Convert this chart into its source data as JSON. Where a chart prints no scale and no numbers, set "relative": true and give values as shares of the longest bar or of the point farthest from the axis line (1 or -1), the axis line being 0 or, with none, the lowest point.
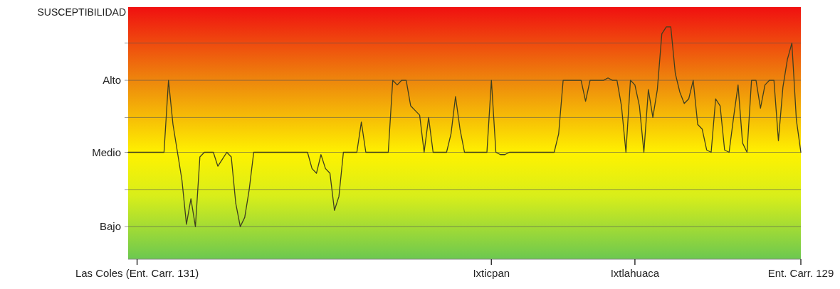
{
  "chart_data": {
    "type": "line",
    "ylabel": "SUSCEPTIBILIDAD",
    "relative": true,
    "categories": [
      null,
      null,
      "Las Coles (Ent. Carr. 131)",
      null,
      null,
      null,
      null,
      null,
      null,
      null,
      null,
      null,
      null,
      null,
      null,
      null,
      null,
      null,
      null,
      null,
      null,
      null,
      null,
      null,
      null,
      null,
      null,
      null,
      null,
      null,
      null,
      null,
      null,
      null,
      null,
      null,
      null,
      null,
      null,
      null,
      null,
      null,
      null,
      null,
      null,
      null,
      null,
      null,
      null,
      null,
      null,
      null,
      null,
      null,
      null,
      null,
      null,
      null,
      null,
      null,
      null,
      null,
      null,
      null,
      null,
      null,
      null,
      null,
      null,
      null,
      null,
      null,
      null,
      null,
      null,
      null,
      null,
      null,
      null,
      null,
      null,
      "Ixticpan",
      null,
      null,
      null,
      null,
      null,
      null,
      null,
      null,
      null,
      null,
      null,
      null,
      null,
      null,
      null,
      null,
      null,
      null,
      null,
      null,
      null,
      null,
      null,
      null,
      null,
      null,
      null,
      null,
      null,
      null,
      null,
      "Ixtlahuaca",
      null,
      null,
      null,
      null,
      null,
      null,
      null,
      null,
      null,
      null,
      null,
      null,
      null,
      null,
      null,
      null,
      null,
      null,
      null,
      null,
      null,
      null,
      null,
      null,
      null,
      null,
      null,
      null,
      null,
      null,
      null,
      null,
      null,
      null,
      null,
      null,
      "Ent. Carr. 129"
    ],
    "ref_lines": [
      {
        "axis": "y",
        "value": 0.14,
        "label": "Bajo"
      },
      {
        "axis": "y",
        "value": 0.3,
        "label": null
      },
      {
        "axis": "y",
        "value": 0.46,
        "label": "Medio"
      },
      {
        "axis": "y",
        "value": 0.61,
        "label": null
      },
      {
        "axis": "y",
        "value": 0.77,
        "label": "Alto"
      },
      {
        "axis": "y",
        "value": 0.93,
        "label": null
      }
    ],
    "line_style": "solid",
    "series": [
      {
        "color": "#3f3f1f",
        "values": [
          0.46,
          0.46,
          0.46,
          0.46,
          0.46,
          0.46,
          0.46,
          0.46,
          0.46,
          0.77,
          0.58,
          0.46,
          0.34,
          0.15,
          0.26,
          0.14,
          0.44,
          0.46,
          0.46,
          0.46,
          0.4,
          0.43,
          0.46,
          0.44,
          0.24,
          0.14,
          0.18,
          0.3,
          0.46,
          0.46,
          0.46,
          0.46,
          0.46,
          0.46,
          0.46,
          0.46,
          0.46,
          0.46,
          0.46,
          0.46,
          0.46,
          0.39,
          0.37,
          0.45,
          0.39,
          0.37,
          0.21,
          0.27,
          0.46,
          0.46,
          0.46,
          0.46,
          0.59,
          0.46,
          0.46,
          0.46,
          0.46,
          0.46,
          0.46,
          0.77,
          0.75,
          0.77,
          0.77,
          0.66,
          0.64,
          0.62,
          0.46,
          0.61,
          0.46,
          0.46,
          0.46,
          0.46,
          0.54,
          0.7,
          0.56,
          0.46,
          0.46,
          0.46,
          0.46,
          0.46,
          0.46,
          0.77,
          0.46,
          0.45,
          0.45,
          0.46,
          0.46,
          0.46,
          0.46,
          0.46,
          0.46,
          0.46,
          0.46,
          0.46,
          0.46,
          0.46,
          0.54,
          0.77,
          0.77,
          0.77,
          0.77,
          0.77,
          0.68,
          0.77,
          0.77,
          0.77,
          0.77,
          0.78,
          0.77,
          0.77,
          0.66,
          0.46,
          0.77,
          0.75,
          0.66,
          0.46,
          0.73,
          0.61,
          0.73,
          0.97,
          1,
          1,
          0.8,
          0.72,
          0.67,
          0.69,
          0.77,
          0.58,
          0.56,
          0.47,
          0.46,
          0.69,
          0.66,
          0.47,
          0.46,
          0.61,
          0.75,
          0.5,
          0.46,
          0.77,
          0.77,
          0.65,
          0.75,
          0.77,
          0.77,
          0.51,
          0.74,
          0.86,
          0.93,
          0.6,
          0.46
        ]
      }
    ]
  }
}
